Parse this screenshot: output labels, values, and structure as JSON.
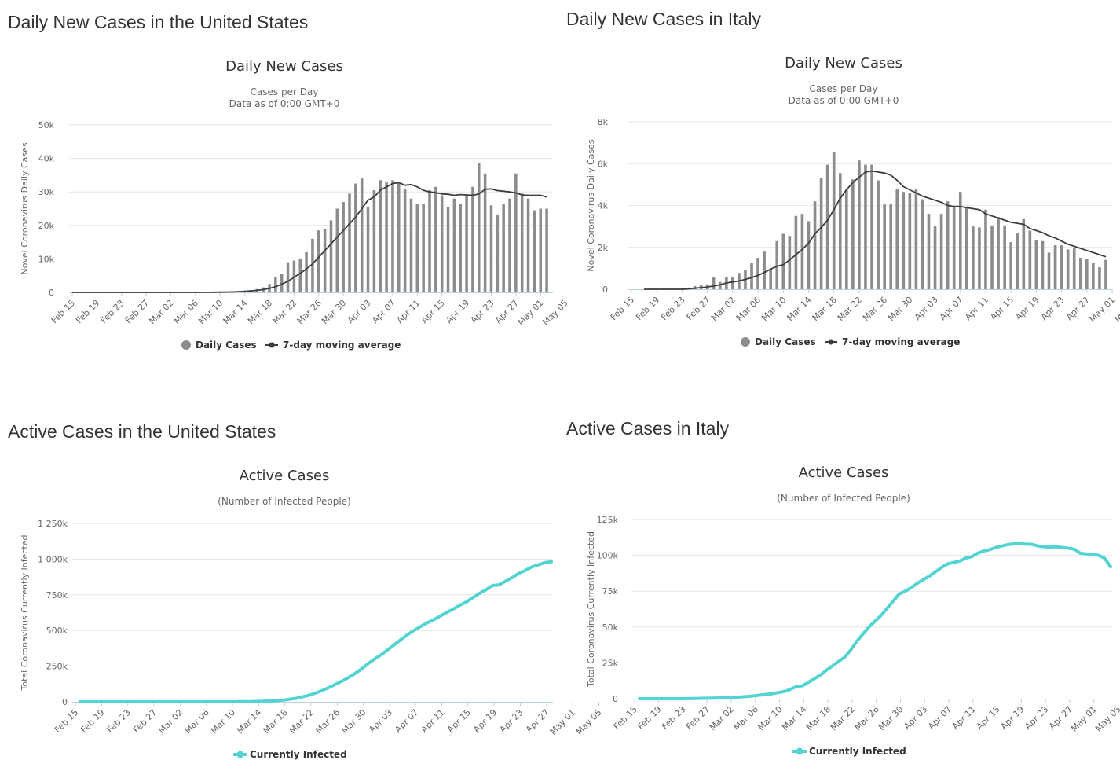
{
  "colors": {
    "bar": "#8c8c8c",
    "avg": "#3d3d3d",
    "active": "#54d3d3",
    "grid": "#e6e6e6",
    "axis": "#c0d0e0",
    "text": "#333333",
    "subtext": "#666666"
  },
  "sections": {
    "us_daily": "Daily New Cases in the United States",
    "it_daily": "Daily New Cases in Italy",
    "us_active": "Active Cases in the United States",
    "it_active": "Active Cases in Italy"
  },
  "chart_data": [
    {
      "id": "us_daily",
      "type": "bar",
      "title": "Daily New Cases",
      "subtitle": [
        "Cases per Day",
        "Data as of 0:00 GMT+0"
      ],
      "ylabel": "Novel Coronavirus Daily Cases",
      "xlabel": "",
      "ylim": [
        0,
        50000
      ],
      "yticks": [
        0,
        10000,
        20000,
        30000,
        40000,
        50000
      ],
      "ytick_labels": [
        "0",
        "10k",
        "20k",
        "30k",
        "40k",
        "50k"
      ],
      "xtick_labels": [
        "Feb 15",
        "Feb 19",
        "Feb 23",
        "Feb 27",
        "Mar 02",
        "Mar 06",
        "Mar 10",
        "Mar 14",
        "Mar 18",
        "Mar 22",
        "Mar 26",
        "Mar 30",
        "Apr 03",
        "Apr 07",
        "Apr 11",
        "Apr 15",
        "Apr 19",
        "Apr 23",
        "Apr 27",
        "May 01",
        "May 05"
      ],
      "legend": [
        "Daily Cases",
        "7-day moving average"
      ],
      "series": [
        {
          "name": "Daily Cases",
          "values": [
            0,
            0,
            0,
            0,
            0,
            0,
            0,
            0,
            0,
            0,
            0,
            0,
            0,
            0,
            0,
            0,
            0,
            0,
            5,
            10,
            20,
            30,
            50,
            80,
            100,
            150,
            250,
            400,
            500,
            700,
            1000,
            1500,
            2500,
            4500,
            5500,
            9000,
            9500,
            10000,
            12000,
            16000,
            18500,
            19000,
            21500,
            25000,
            27000,
            29500,
            32500,
            34000,
            25500,
            30500,
            33500,
            33000,
            33500,
            33000,
            31000,
            28000,
            26500,
            26500,
            30500,
            31500,
            29000,
            25500,
            28000,
            26500,
            29000,
            31500,
            38500,
            35500,
            26000,
            23000,
            26500,
            28000,
            35500,
            29500,
            28000,
            24500,
            25000,
            25000
          ]
        },
        {
          "name": "7-day moving average",
          "values": [
            0,
            0,
            0,
            0,
            0,
            0,
            0,
            0,
            0,
            0,
            0,
            0,
            0,
            0,
            0,
            0,
            0,
            0,
            0,
            5,
            10,
            15,
            25,
            40,
            60,
            90,
            130,
            200,
            300,
            420,
            600,
            850,
            1200,
            1700,
            2500,
            3300,
            4500,
            5700,
            7000,
            8500,
            10500,
            12500,
            14500,
            16500,
            18500,
            20500,
            22500,
            25000,
            27500,
            28500,
            30500,
            31500,
            32500,
            32800,
            32000,
            32200,
            31500,
            30500,
            30000,
            29800,
            29400,
            29300,
            29000,
            29200,
            29100,
            29000,
            29400,
            30800,
            30900,
            30400,
            30200,
            30000,
            29700,
            29100,
            29000,
            29000,
            29000,
            28500
          ]
        }
      ]
    },
    {
      "id": "it_daily",
      "type": "bar",
      "title": "Daily New Cases",
      "subtitle": [
        "Cases per Day",
        "Data as of 0:00 GMT+0"
      ],
      "ylabel": "Novel Coronavirus Daily Cases",
      "xlabel": "",
      "ylim": [
        0,
        8000
      ],
      "yticks": [
        0,
        2000,
        4000,
        6000,
        8000
      ],
      "ytick_labels": [
        "0",
        "2k",
        "4k",
        "6k",
        "8k"
      ],
      "xtick_labels": [
        "Feb 15",
        "Feb 19",
        "Feb 23",
        "Feb 27",
        "Mar 02",
        "Mar 06",
        "Mar 10",
        "Mar 14",
        "Mar 18",
        "Mar 22",
        "Mar 26",
        "Mar 30",
        "Apr 03",
        "Apr 07",
        "Apr 11",
        "Apr 15",
        "Apr 19",
        "Apr 23",
        "Apr 27",
        "May 01",
        "May 05"
      ],
      "legend": [
        "Daily Cases",
        "7-day moving average"
      ],
      "series": [
        {
          "name": "Daily Cases",
          "values": [
            0,
            0,
            0,
            0,
            0,
            0,
            0,
            20,
            60,
            80,
            150,
            200,
            240,
            560,
            350,
            570,
            600,
            780,
            900,
            1250,
            1500,
            1800,
            950,
            2300,
            2650,
            2550,
            3500,
            3600,
            3250,
            4200,
            5300,
            5950,
            6550,
            5550,
            4800,
            5250,
            6150,
            5950,
            5950,
            5200,
            4050,
            4050,
            4800,
            4650,
            4600,
            4800,
            4300,
            3600,
            3000,
            3600,
            4200,
            3950,
            4650,
            3950,
            3000,
            2950,
            3800,
            3050,
            3450,
            3050,
            2250,
            2700,
            3350,
            2800,
            2350,
            2300,
            1750,
            2100,
            2100,
            1900,
            1950,
            1500,
            1450,
            1250,
            1050,
            1400
          ]
        },
        {
          "name": "7-day moving average",
          "values": [
            0,
            0,
            0,
            0,
            0,
            0,
            0,
            20,
            50,
            80,
            110,
            160,
            210,
            300,
            350,
            400,
            470,
            560,
            660,
            800,
            960,
            1100,
            1170,
            1400,
            1650,
            1900,
            2200,
            2650,
            2950,
            3300,
            3800,
            4350,
            4750,
            5100,
            5350,
            5600,
            5650,
            5600,
            5550,
            5450,
            5200,
            4900,
            4750,
            4600,
            4450,
            4350,
            4250,
            4150,
            4000,
            3950,
            3950,
            3900,
            3850,
            3800,
            3600,
            3500,
            3400,
            3300,
            3200,
            3150,
            3100,
            2900,
            2800,
            2700,
            2550,
            2450,
            2300,
            2150,
            2050,
            1950,
            1850,
            1750,
            1650,
            1550
          ]
        }
      ]
    },
    {
      "id": "us_active",
      "type": "line",
      "title": "Active Cases",
      "subtitle": [
        "(Number of Infected People)"
      ],
      "ylabel": "Total Coronavirus Currently Infected",
      "xlabel": "",
      "ylim": [
        0,
        1250000
      ],
      "yticks": [
        0,
        250000,
        500000,
        750000,
        1000000,
        1250000
      ],
      "ytick_labels": [
        "0",
        "250k",
        "500k",
        "750k",
        "1 000k",
        "1 250k"
      ],
      "xtick_labels": [
        "Feb 15",
        "Feb 19",
        "Feb 23",
        "Feb 27",
        "Mar 02",
        "Mar 06",
        "Mar 10",
        "Mar 14",
        "Mar 18",
        "Mar 22",
        "Mar 26",
        "Mar 30",
        "Apr 03",
        "Apr 07",
        "Apr 11",
        "Apr 15",
        "Apr 19",
        "Apr 23",
        "Apr 27",
        "May 01",
        "May 05"
      ],
      "legend": [
        "Currently Infected"
      ],
      "series": [
        {
          "name": "Currently Infected",
          "values": [
            10,
            10,
            10,
            10,
            10,
            10,
            10,
            10,
            10,
            10,
            10,
            10,
            10,
            20,
            40,
            60,
            80,
            100,
            150,
            200,
            300,
            400,
            500,
            600,
            800,
            1000,
            1500,
            2500,
            4000,
            6000,
            8000,
            12000,
            18000,
            25000,
            35000,
            47000,
            62000,
            80000,
            100000,
            122000,
            145000,
            170000,
            198000,
            230000,
            268000,
            300000,
            330000,
            365000,
            400000,
            435000,
            470000,
            500000,
            527000,
            553000,
            575000,
            600000,
            626000,
            650000,
            676000,
            700000,
            730000,
            760000,
            785000,
            815000,
            820000,
            845000,
            870000,
            900000,
            920000,
            945000,
            960000,
            975000,
            982000
          ]
        }
      ]
    },
    {
      "id": "it_active",
      "type": "line",
      "title": "Active Cases",
      "subtitle": [
        "(Number of Infected People)"
      ],
      "ylabel": "Total Coronavirus Currently Infected",
      "xlabel": "",
      "ylim": [
        0,
        125000
      ],
      "yticks": [
        0,
        25000,
        50000,
        75000,
        100000,
        125000
      ],
      "ytick_labels": [
        "0",
        "25k",
        "50k",
        "75k",
        "100k",
        "125k"
      ],
      "xtick_labels": [
        "Feb 15",
        "Feb 19",
        "Feb 23",
        "Feb 27",
        "Mar 02",
        "Mar 06",
        "Mar 10",
        "Mar 14",
        "Mar 18",
        "Mar 22",
        "Mar 26",
        "Mar 30",
        "Apr 03",
        "Apr 07",
        "Apr 11",
        "Apr 15",
        "Apr 19",
        "Apr 23",
        "Apr 27",
        "May 01",
        "May 05"
      ],
      "legend": [
        "Currently Infected"
      ],
      "series": [
        {
          "name": "Currently Infected",
          "values": [
            0,
            0,
            0,
            0,
            0,
            0,
            0,
            20,
            60,
            130,
            220,
            310,
            400,
            500,
            600,
            800,
            1000,
            1300,
            1600,
            2000,
            2500,
            3000,
            3500,
            4300,
            5000,
            6500,
            8500,
            9000,
            11500,
            14000,
            16500,
            20000,
            23000,
            26000,
            29000,
            34000,
            40000,
            45000,
            50000,
            54000,
            58000,
            63000,
            68000,
            73000,
            75000,
            77500,
            80500,
            83000,
            85500,
            88500,
            91500,
            94000,
            95000,
            96000,
            98000,
            99000,
            101500,
            103000,
            104000,
            105500,
            106500,
            107500,
            108000,
            108200,
            107800,
            107700,
            106500,
            106000,
            105700,
            106000,
            105500,
            105000,
            104300,
            101500,
            101000,
            100800,
            100000,
            98000,
            92000
          ]
        }
      ]
    }
  ]
}
